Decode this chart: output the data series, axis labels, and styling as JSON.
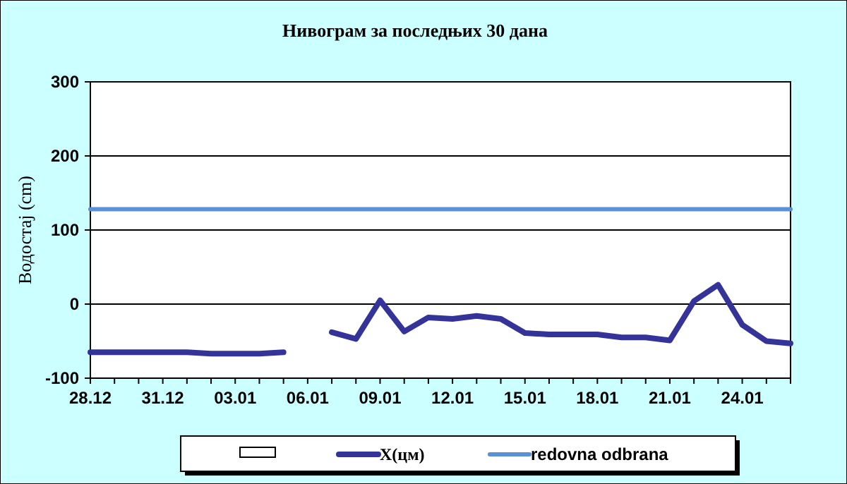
{
  "chart_data": {
    "type": "line",
    "title": "Нивограм за последњих 30 дана",
    "ylabel": "Водостај (cm)",
    "categories": [
      "28.12",
      null,
      null,
      "31.12",
      null,
      null,
      "03.01",
      null,
      null,
      "06.01",
      null,
      null,
      "09.01",
      null,
      null,
      "12.01",
      null,
      null,
      "15.01",
      null,
      null,
      "18.01",
      null,
      null,
      "21.01",
      null,
      null,
      "24.01",
      null,
      null
    ],
    "series": [
      {
        "name": "X(цм)",
        "color": "#333399",
        "values": [
          -65,
          -65,
          -65,
          -65,
          -65,
          -67,
          -67,
          -67,
          -65,
          null,
          -38,
          -47,
          5,
          -37,
          -18,
          -20,
          -16,
          -20,
          -39,
          -41,
          -41,
          -41,
          -45,
          -45,
          -49,
          4,
          26,
          -28,
          -50,
          -53
        ]
      },
      {
        "name": "redovna odbrana",
        "color": "#5b8fd6",
        "values": [
          128,
          128,
          128,
          128,
          128,
          128,
          128,
          128,
          128,
          128,
          128,
          128,
          128,
          128,
          128,
          128,
          128,
          128,
          128,
          128,
          128,
          128,
          128,
          128,
          128,
          128,
          128,
          128,
          128,
          128
        ]
      }
    ],
    "ylim": [
      -100,
      300
    ],
    "yticks": [
      -100,
      0,
      100,
      200,
      300
    ],
    "grid": "y",
    "legend": "bottom"
  }
}
